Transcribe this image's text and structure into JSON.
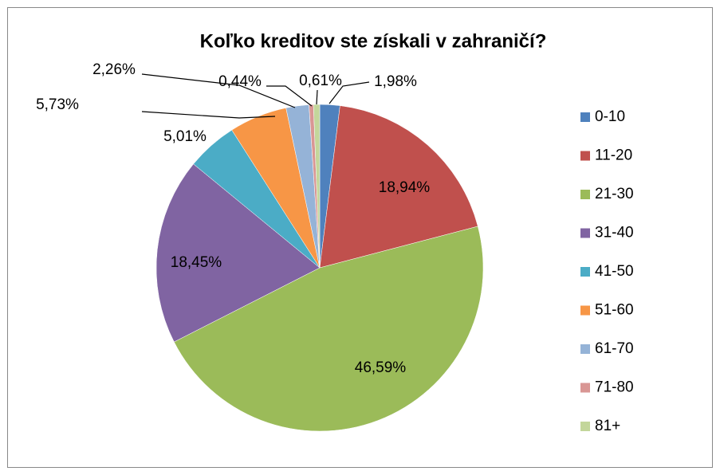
{
  "chart_data": {
    "type": "pie",
    "title": "Koľko kreditov ste získali v zahraničí?",
    "categories": [
      "0-10",
      "11-20",
      "21-30",
      "31-40",
      "41-50",
      "51-60",
      "61-70",
      "71-80",
      "81+"
    ],
    "values": [
      1.98,
      18.94,
      46.59,
      18.45,
      5.01,
      5.73,
      2.26,
      0.44,
      0.61
    ],
    "value_labels": [
      "1,98%",
      "18,94%",
      "46,59%",
      "18,45%",
      "5,01%",
      "5,73%",
      "2,26%",
      "0,44%",
      "0,61%"
    ],
    "colors": [
      "#4f81bd",
      "#c0504d",
      "#9bbb59",
      "#8064a2",
      "#4bacc6",
      "#f79646",
      "#95b3d7",
      "#d99694",
      "#c3d69b"
    ],
    "legend": "right"
  }
}
